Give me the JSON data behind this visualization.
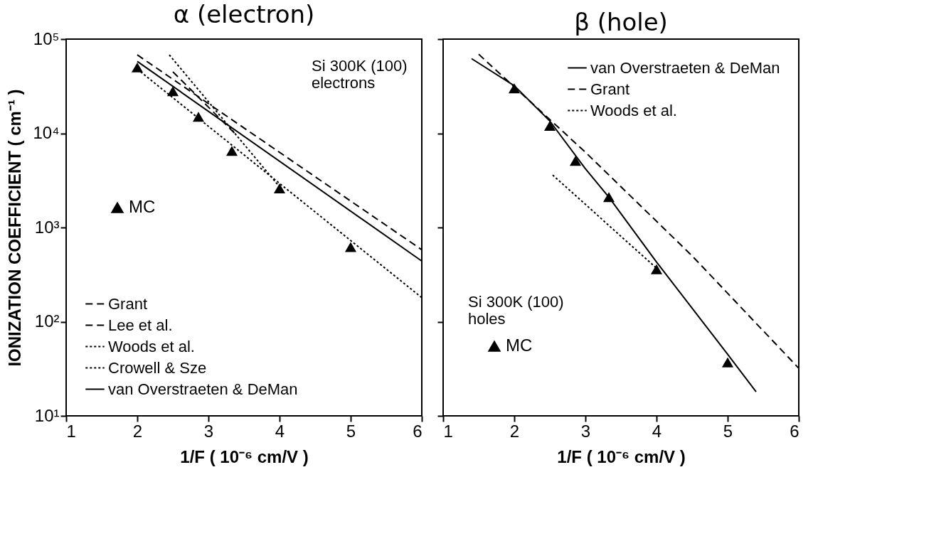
{
  "chart_data": [
    {
      "type": "line",
      "title": "α (electron)",
      "xlabel": "1/F ( 10⁻⁶ cm/V )",
      "ylabel": "IONIZATION COEFFICIENT ( cm⁻¹ )",
      "log": "y",
      "grid": false,
      "legend": "bottom left",
      "xlim": [
        1,
        6
      ],
      "xticks": [
        1,
        2,
        3,
        4,
        5,
        6
      ],
      "ylim": [
        10,
        100000
      ],
      "yticks": [
        {
          "value": 10,
          "label": "10¹"
        },
        {
          "value": 100,
          "label": "10²"
        },
        {
          "value": 1000,
          "label": "10³"
        },
        {
          "value": 10000,
          "label": "10⁴"
        },
        {
          "value": 100000,
          "label": "10⁵"
        }
      ],
      "annotations": [
        "Si  300K (100)\nelectrons"
      ],
      "series": [
        {
          "name": "Grant",
          "color": "#000000",
          "line_style": "dashed",
          "x": [
            2,
            6
          ],
          "values": [
            68000,
            580
          ]
        },
        {
          "name": "Lee et al.",
          "color": "#000000",
          "line_style": "dashed",
          "x": [
            2.5,
            3.4
          ],
          "values": [
            45000,
            9500
          ]
        },
        {
          "name": "Woods et al.",
          "color": "#000000",
          "line_style": "dotted",
          "x": [
            2,
            6
          ],
          "values": [
            48000,
            180
          ]
        },
        {
          "name": "Crowell & Sze",
          "color": "#000000",
          "line_style": "dotted",
          "x": [
            2.45,
            4
          ],
          "values": [
            68000,
            2700
          ]
        },
        {
          "name": "van Overstraeten & DeMan",
          "color": "#000000",
          "line_style": "solid",
          "x": [
            2,
            6
          ],
          "values": [
            58000,
            440
          ]
        },
        {
          "name": "MC",
          "type": "scatter",
          "marker": "triangle",
          "color": "#000000",
          "x": [
            2,
            2.5,
            2.86,
            3.33,
            4,
            5
          ],
          "values": [
            50000,
            28000,
            15000,
            6500,
            2600,
            620
          ]
        }
      ]
    },
    {
      "type": "line",
      "title": "β (hole)",
      "xlabel": "1/F ( 10⁻⁶ cm/V )",
      "log": "y",
      "grid": false,
      "legend": "top right",
      "tick_labels": "x",
      "xlim": [
        1,
        6
      ],
      "xticks": [
        1,
        2,
        3,
        4,
        5,
        6
      ],
      "ylim": [
        10,
        100000
      ],
      "yticks": [
        10,
        100,
        1000,
        10000,
        100000
      ],
      "annotations": [
        "Si  300K (100)\nholes"
      ],
      "series": [
        {
          "name": "van Overstraeten & DeMan",
          "color": "#000000",
          "line_style": "solid",
          "x": [
            1.4,
            2,
            2.5,
            3,
            3.33,
            4,
            5,
            5.4
          ],
          "values": [
            62000,
            32000,
            13500,
            4200,
            2100,
            430,
            45,
            18
          ]
        },
        {
          "name": "Grant",
          "color": "#000000",
          "line_style": "dashed",
          "x": [
            1.5,
            3,
            4.5,
            6
          ],
          "values": [
            69000,
            6300,
            500,
            32
          ]
        },
        {
          "name": "Woods et al.",
          "color": "#000000",
          "line_style": "dotted",
          "x": [
            2.54,
            4
          ],
          "values": [
            3600,
            370
          ]
        },
        {
          "name": "MC",
          "type": "scatter",
          "marker": "triangle",
          "color": "#000000",
          "x": [
            2,
            2.5,
            2.86,
            3.33,
            4,
            5
          ],
          "values": [
            30000,
            12000,
            5100,
            2100,
            360,
            37
          ]
        }
      ]
    }
  ]
}
